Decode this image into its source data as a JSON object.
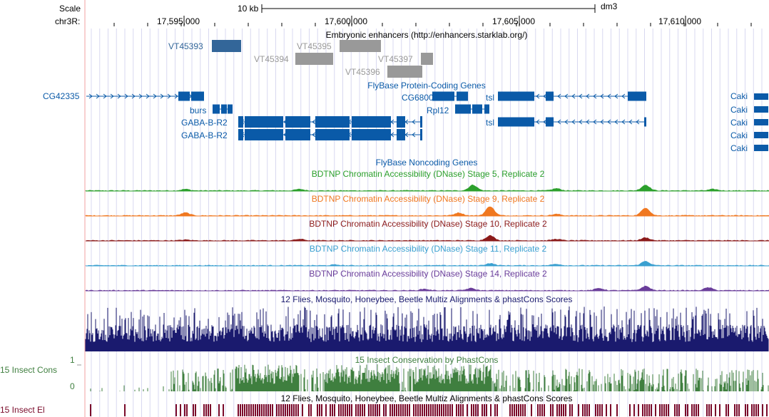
{
  "header": {
    "scale_label": "Scale",
    "scale_bar_label": "10 kb",
    "assembly": "dm3",
    "chrom_label": "chr3R:",
    "ruler_ticks": [
      "17,595,000",
      "17,600,000",
      "17,605,000",
      "17,610,000"
    ]
  },
  "tracks": {
    "enhancers": {
      "title": "Embryonic enhancers (http://enhancers.starklab.org/)",
      "items": [
        {
          "label": "VT45393",
          "selected": true
        },
        {
          "label": "VT45394",
          "selected": false
        },
        {
          "label": "VT45395",
          "selected": false
        },
        {
          "label": "VT45396",
          "selected": false
        },
        {
          "label": "VT45397",
          "selected": false
        }
      ]
    },
    "flybase_protein": {
      "title": "FlyBase Protein-Coding Genes",
      "genes": [
        "CG42335",
        "burs",
        "GABA-B-R2",
        "GABA-B-R2",
        "CG6800",
        "Rpl12",
        "tsl",
        "tsl",
        "Caki",
        "Caki",
        "Caki",
        "Caki",
        "Caki"
      ]
    },
    "flybase_noncoding": {
      "title": "FlyBase Noncoding Genes"
    },
    "dnase": [
      {
        "title": "BDTNP Chromatin Accessibility (DNase) Stage 5, Replicate 2",
        "color": "#2ca02c"
      },
      {
        "title": "BDTNP Chromatin Accessibility (DNase) Stage 9, Replicate 2",
        "color": "#f07820"
      },
      {
        "title": "BDTNP Chromatin Accessibility (DNase) Stage 10, Replicate 2",
        "color": "#8b1a1a"
      },
      {
        "title": "BDTNP Chromatin Accessibility (DNase) Stage 11, Replicate 2",
        "color": "#3aa0d0"
      },
      {
        "title": "BDTNP Chromatin Accessibility (DNase) Stage 14, Replicate 2",
        "color": "#6a3d9a"
      }
    ],
    "multiz": {
      "title": "12 Flies, Mosquito, Honeybee, Beetle Multiz Alignments & phastCons Scores",
      "color": "#1a1a6e"
    },
    "insect_cons": {
      "title": "15 Insect Conservation by PhastCons",
      "side_label": "15 Insect Cons",
      "axis_max": "1",
      "axis_min": "0",
      "color": "#3f7f3f"
    },
    "insect_el": {
      "title": "12 Flies, Mosquito, Honeybee, Beetle Multiz Alignments & phastCons Scores",
      "side_label": "15 Insect El",
      "color": "#7a0a2a"
    }
  },
  "colors": {
    "gene": "#0a5aa8",
    "selected_enhancer": "#336699",
    "enhancer": "#999999",
    "guide_line": "#d8d8f0"
  }
}
